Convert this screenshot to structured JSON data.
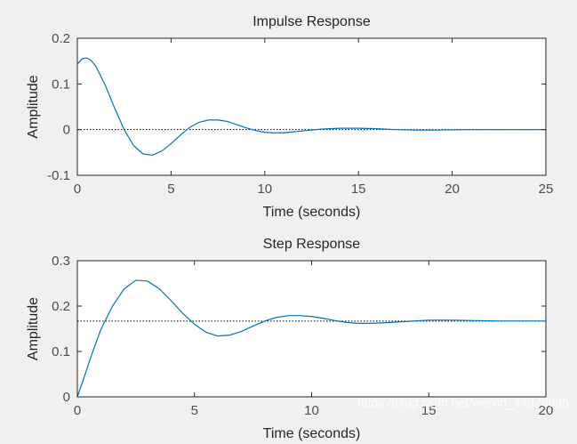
{
  "colors": {
    "figure_bg": "#f0f0f0",
    "axes_bg": "#ffffff",
    "series": "#0072bd",
    "text": "#262626",
    "tick_text": "#4d4d4d"
  },
  "watermark": "https://blog.csdn.net/weixin_44378835",
  "chart_data": [
    {
      "type": "line",
      "title": "Impulse Response",
      "xlabel": "Time (seconds)",
      "ylabel": "Amplitude",
      "xlim": [
        0,
        25
      ],
      "ylim": [
        -0.1,
        0.2
      ],
      "xticks": [
        0,
        5,
        10,
        15,
        20,
        25
      ],
      "xtick_labels": [
        "0",
        "5",
        "10",
        "15",
        "20",
        "25"
      ],
      "yticks": [
        -0.1,
        0,
        0.1,
        0.2
      ],
      "ytick_labels": [
        "-0.1",
        "0",
        "0.1",
        "0.2"
      ],
      "grid": false,
      "reference_line": {
        "y": 0,
        "style": "dotted"
      },
      "series": [
        {
          "x": [
            0,
            0.25,
            0.5,
            0.75,
            1.0,
            1.5,
            2.0,
            2.5,
            3.0,
            3.5,
            4.0,
            4.5,
            5.0,
            5.5,
            6.0,
            6.5,
            7.0,
            7.5,
            8.0,
            8.5,
            9.0,
            9.5,
            10.0,
            10.5,
            11.0,
            11.5,
            12.0,
            13.0,
            14.0,
            15.0,
            16.0,
            17.0,
            18.0,
            19.0,
            20.0,
            21.0,
            22.0,
            23.0,
            24.0,
            25.0
          ],
          "values": [
            0.143,
            0.155,
            0.157,
            0.151,
            0.138,
            0.096,
            0.046,
            0.0,
            -0.035,
            -0.053,
            -0.056,
            -0.047,
            -0.031,
            -0.012,
            0.005,
            0.016,
            0.021,
            0.021,
            0.018,
            0.011,
            0.004,
            -0.002,
            -0.006,
            -0.007,
            -0.007,
            -0.005,
            -0.003,
            0.001,
            0.003,
            0.003,
            0.002,
            0.0,
            -0.001,
            -0.001,
            -0.0005,
            0.0,
            0.0,
            0.0,
            0.0,
            0.0
          ]
        }
      ]
    },
    {
      "type": "line",
      "title": "Step Response",
      "xlabel": "Time (seconds)",
      "ylabel": "Amplitude",
      "xlim": [
        0,
        20
      ],
      "ylim": [
        0,
        0.3
      ],
      "xticks": [
        0,
        5,
        10,
        15,
        20
      ],
      "xtick_labels": [
        "0",
        "5",
        "10",
        "15",
        "20"
      ],
      "yticks": [
        0,
        0.1,
        0.2,
        0.3
      ],
      "ytick_labels": [
        "0",
        "0.1",
        "0.2",
        "0.3"
      ],
      "grid": false,
      "reference_line": {
        "y": 0.167,
        "style": "dotted"
      },
      "series": [
        {
          "x": [
            0,
            0.25,
            0.5,
            0.75,
            1.0,
            1.5,
            2.0,
            2.5,
            3.0,
            3.5,
            4.0,
            4.5,
            5.0,
            5.5,
            6.0,
            6.5,
            7.0,
            7.5,
            8.0,
            8.5,
            9.0,
            9.5,
            10.0,
            10.5,
            11.0,
            11.5,
            12.0,
            12.5,
            13.0,
            14.0,
            15.0,
            16.0,
            17.0,
            18.0,
            19.0,
            20.0
          ],
          "values": [
            0.0,
            0.037,
            0.076,
            0.113,
            0.148,
            0.2,
            0.238,
            0.257,
            0.255,
            0.238,
            0.212,
            0.184,
            0.16,
            0.142,
            0.134,
            0.136,
            0.144,
            0.156,
            0.167,
            0.175,
            0.179,
            0.179,
            0.177,
            0.173,
            0.168,
            0.164,
            0.162,
            0.162,
            0.163,
            0.166,
            0.169,
            0.169,
            0.168,
            0.167,
            0.167,
            0.167
          ]
        }
      ]
    }
  ]
}
